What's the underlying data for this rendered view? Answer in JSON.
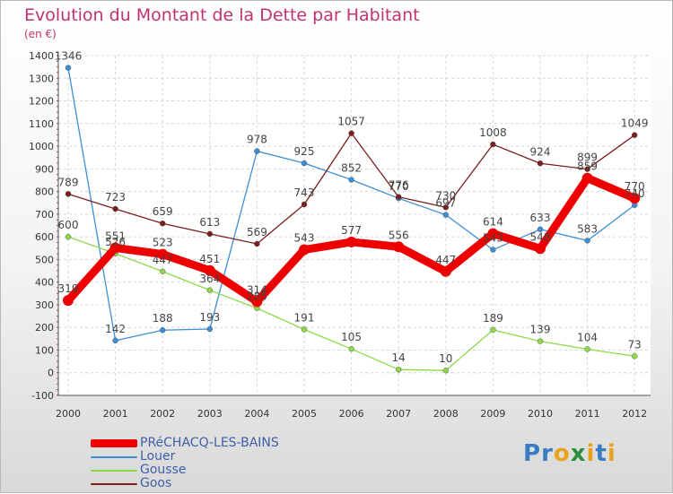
{
  "title": "Evolution du Montant de la Dette par Habitant",
  "unit": "(en €)",
  "logo": [
    "P",
    "r",
    "o",
    "x",
    "i",
    "t",
    "i"
  ],
  "logo_colors": [
    "#3a7cc2",
    "#3a7cc2",
    "#e8a31a",
    "#2f8f3a",
    "#e8a31a",
    "#3a7cc2",
    "#e8a31a"
  ],
  "chart_data": {
    "type": "line",
    "title": "Evolution du Montant de la Dette par Habitant",
    "ylabel": "(en €)",
    "xlabel": "",
    "x": [
      "2000",
      "2001",
      "2002",
      "2003",
      "2004",
      "2005",
      "2006",
      "2007",
      "2008",
      "2009",
      "2010",
      "2011",
      "2012"
    ],
    "ylim": [
      -100,
      1400
    ],
    "yticks": [
      -100,
      0,
      100,
      200,
      300,
      400,
      500,
      600,
      700,
      800,
      900,
      1000,
      1100,
      1200,
      1300,
      1400
    ],
    "grid": true,
    "legend_position": "bottom-left",
    "series": [
      {
        "name": "PRéCHACQ-LES-BAINS",
        "color": "#ee0000",
        "values": [
          319,
          551,
          523,
          451,
          314,
          543,
          577,
          556,
          447,
          614,
          548,
          859,
          770
        ],
        "labels": [
          "319",
          "551",
          "523",
          "451",
          "314",
          "543",
          "577",
          "556",
          "447",
          "614",
          "548",
          "859",
          "770"
        ]
      },
      {
        "name": "Louer",
        "color": "#3d8ed4",
        "values": [
          1346,
          142,
          188,
          193,
          978,
          925,
          852,
          770,
          697,
          543,
          633,
          583,
          740
        ],
        "labels": [
          "1346",
          "142",
          "188",
          "193",
          "978",
          "925",
          "852",
          "770",
          "697",
          "543",
          "633",
          "583",
          "740"
        ]
      },
      {
        "name": "Gousse",
        "color": "#8fd84a",
        "values": [
          600,
          526,
          447,
          364,
          285,
          191,
          105,
          14,
          10,
          189,
          139,
          104,
          73
        ],
        "labels": [
          "600",
          "526",
          "447",
          "364",
          "285",
          "191",
          "105",
          "14",
          "10",
          "189",
          "139",
          "104",
          "73"
        ]
      },
      {
        "name": "Goos",
        "color": "#7a1e1e",
        "values": [
          789,
          723,
          659,
          613,
          569,
          743,
          1057,
          776,
          730,
          1008,
          924,
          899,
          1049
        ],
        "labels": [
          "789",
          "723",
          "659",
          "613",
          "569",
          "743",
          "1057",
          "776",
          "730",
          "1008",
          "924",
          "899",
          "1049"
        ]
      }
    ]
  }
}
